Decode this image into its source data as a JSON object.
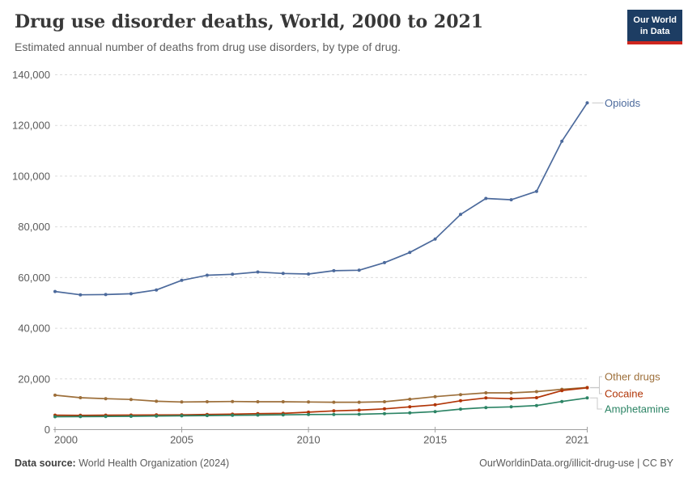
{
  "header": {
    "title": "Drug use disorder deaths, World, 2000 to 2021",
    "subtitle": "Estimated annual number of deaths from drug use disorders, by type of drug.",
    "logo": {
      "line1": "Our World",
      "line2": "in Data",
      "bg_color": "#1D3D63",
      "stripe_color": "#CE261E"
    }
  },
  "footer": {
    "datasource_label": "Data source:",
    "datasource_value": "World Health Organization (2024)",
    "credit": "OurWorldinData.org/illicit-drug-use | CC BY"
  },
  "chart_data": {
    "type": "line",
    "title": "Drug use disorder deaths, World, 2000 to 2021",
    "x": [
      2000,
      2001,
      2002,
      2003,
      2004,
      2005,
      2006,
      2007,
      2008,
      2009,
      2010,
      2011,
      2012,
      2013,
      2014,
      2015,
      2016,
      2017,
      2018,
      2019,
      2020,
      2021
    ],
    "series": [
      {
        "name": "Opioids",
        "color": "#4C6A9C",
        "values": [
          54500,
          53200,
          53300,
          53600,
          55100,
          58900,
          60900,
          61300,
          62200,
          61600,
          61400,
          62700,
          62900,
          65900,
          69900,
          75200,
          84900,
          91200,
          90700,
          94000,
          113800,
          128900
        ]
      },
      {
        "name": "Other drugs",
        "color": "#9D6F3A",
        "values": [
          13600,
          12600,
          12200,
          11900,
          11200,
          10900,
          11000,
          11100,
          11000,
          11000,
          10900,
          10800,
          10800,
          11000,
          12000,
          13000,
          13800,
          14500,
          14500,
          15000,
          15900,
          16600
        ]
      },
      {
        "name": "Cocaine",
        "color": "#B13507",
        "values": [
          5700,
          5650,
          5700,
          5750,
          5800,
          5850,
          6000,
          6100,
          6300,
          6400,
          6900,
          7400,
          7700,
          8200,
          9000,
          9800,
          11400,
          12500,
          12200,
          12600,
          15400,
          16500
        ]
      },
      {
        "name": "Amphetamine",
        "color": "#2C8465",
        "values": [
          5100,
          5150,
          5200,
          5250,
          5350,
          5450,
          5550,
          5650,
          5750,
          5850,
          5950,
          6000,
          6050,
          6300,
          6600,
          7100,
          8100,
          8700,
          9000,
          9500,
          11100,
          12500
        ]
      }
    ],
    "ylim": [
      0,
      140000
    ],
    "yticks": [
      0,
      20000,
      40000,
      60000,
      80000,
      100000,
      120000,
      140000
    ],
    "ytick_labels": [
      "0",
      "20,000",
      "40,000",
      "60,000",
      "80,000",
      "100,000",
      "120,000",
      "140,000"
    ],
    "xticks": [
      2000,
      2005,
      2010,
      2015,
      2021
    ],
    "xtick_labels": [
      "2000",
      "2005",
      "2010",
      "2015",
      "2021"
    ],
    "grid": "horizontal-dashed",
    "legend_position": "line-end-labels",
    "grid_color": "#DBDBDB",
    "axis_color": "#A0A0A0",
    "tick_label_color": "#5B5B5B"
  }
}
